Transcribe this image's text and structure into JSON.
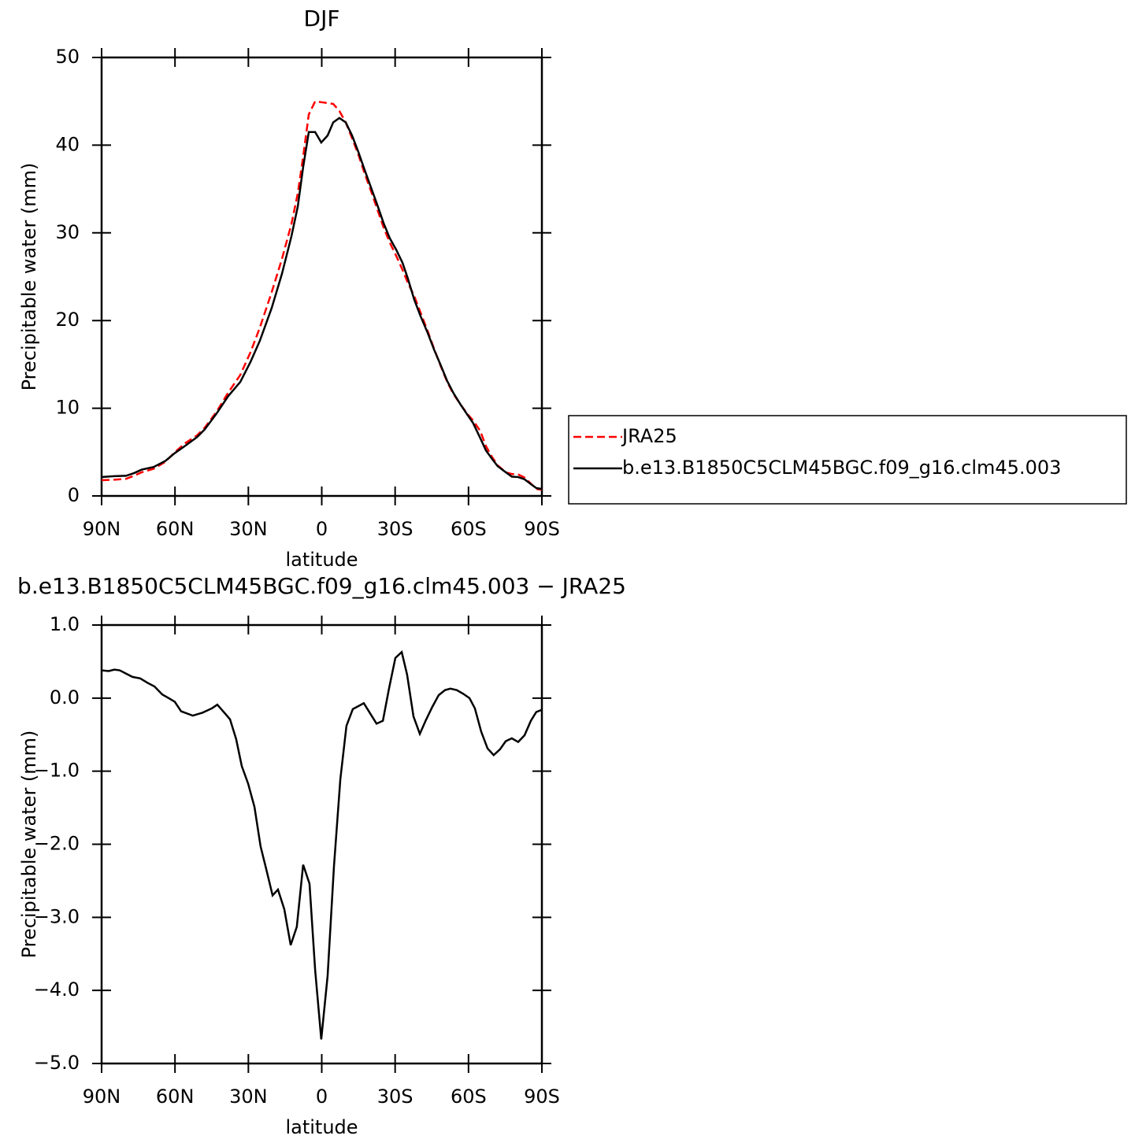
{
  "chart_data": [
    {
      "type": "line",
      "title": "DJF",
      "ylabel": "Precipitable water (mm)",
      "xlabel": "latitude",
      "x": [
        90,
        84.8,
        80,
        76.8,
        73.6,
        68.7,
        63.9,
        60,
        55.9,
        51,
        47.8,
        43,
        38.2,
        33.3,
        29.1,
        25.3,
        20.5,
        16.3,
        12.4,
        9.8,
        7.6,
        5.3,
        2.7,
        0.2,
        -2.4,
        -4.7,
        -7.2,
        -9.8,
        -12.4,
        -15,
        -17.5,
        -20.1,
        -22.7,
        -25.3,
        -27.8,
        -30.4,
        -33,
        -35.2,
        -37.8,
        -40.4,
        -43.3,
        -45.9,
        -48.8,
        -51.3,
        -53.9,
        -56.8,
        -59.7,
        -61.9,
        -64.8,
        -67.1,
        -69.7,
        -71.9,
        -75.2,
        -77.7,
        -80.3,
        -82.9,
        -85.5,
        -87.7,
        -90
      ],
      "series": [
        {
          "name": "JRA25",
          "color": "#ff0000",
          "linestyle": "dashed",
          "values": [
            1.8,
            1.85,
            1.95,
            2.3,
            2.7,
            3.1,
            3.9,
            5.0,
            6.0,
            6.9,
            7.8,
            9.6,
            11.8,
            13.8,
            16.4,
            19.2,
            23.2,
            27.0,
            31.0,
            34.5,
            38.7,
            43.5,
            45.0,
            44.9,
            44.8,
            44.7,
            43.9,
            42.6,
            40.8,
            38.9,
            36.8,
            34.8,
            32.7,
            30.6,
            28.9,
            27.4,
            25.8,
            24.3,
            22.8,
            20.9,
            18.8,
            16.8,
            14.7,
            13.0,
            11.6,
            10.4,
            9.3,
            8.6,
            7.4,
            5.7,
            4.4,
            3.5,
            2.7,
            2.5,
            2.45,
            2.1,
            1.4,
            0.8,
            0.7
          ]
        },
        {
          "name": "b.e13.B1850C5CLM45BGC.f09_g16.clm45.003",
          "color": "#000000",
          "linestyle": "solid",
          "values": [
            2.15,
            2.25,
            2.3,
            2.6,
            3.0,
            3.3,
            4.0,
            4.9,
            5.7,
            6.7,
            7.6,
            9.4,
            11.4,
            13.0,
            15.3,
            17.7,
            21.4,
            25.3,
            29.6,
            33.0,
            37.5,
            41.5,
            41.5,
            40.3,
            41.1,
            42.6,
            43.1,
            42.6,
            41.1,
            39.2,
            37.2,
            35.2,
            33.2,
            31.1,
            29.4,
            28.1,
            26.6,
            24.8,
            22.4,
            20.5,
            18.6,
            16.7,
            14.8,
            13.1,
            11.7,
            10.4,
            9.2,
            8.3,
            6.6,
            5.2,
            4.2,
            3.4,
            2.7,
            2.2,
            2.15,
            1.9,
            1.35,
            0.9,
            0.8
          ]
        }
      ],
      "xlim": [
        90,
        -90
      ],
      "xticks": [
        {
          "value": 90,
          "label": "90N"
        },
        {
          "value": 60,
          "label": "60N"
        },
        {
          "value": 30,
          "label": "30N"
        },
        0,
        {
          "value": -30,
          "label": "30S"
        },
        {
          "value": -60,
          "label": "60S"
        },
        {
          "value": -90,
          "label": "90S"
        }
      ],
      "ylim": [
        0,
        50
      ],
      "yticks": [
        0,
        10,
        20,
        30,
        40,
        50
      ],
      "legend": "right"
    },
    {
      "type": "line",
      "title": "b.e13.B1850C5CLM45BGC.f09_g16.clm45.003 − JRA25",
      "ylabel": "Precipitable water (mm)",
      "xlabel": "latitude",
      "x": [
        90,
        87.1,
        84.8,
        82.6,
        77.4,
        74.2,
        71.3,
        68.4,
        65.2,
        62.6,
        60.1,
        57.5,
        52.7,
        48.8,
        44.9,
        42.7,
        39.8,
        37.5,
        35.0,
        32.7,
        30.1,
        27.5,
        25.0,
        22.4,
        20.1,
        17.9,
        15.3,
        12.7,
        10.2,
        7.6,
        5.0,
        2.7,
        0.2,
        -2.4,
        -5.0,
        -7.6,
        -10.1,
        -12.7,
        -15.0,
        -17.2,
        -19.8,
        -22.4,
        -25.0,
        -27.5,
        -30.1,
        -32.7,
        -34.9,
        -37.5,
        -40.1,
        -42.6,
        -45.2,
        -47.8,
        -50.4,
        -52.6,
        -55.2,
        -57.8,
        -60.4,
        -62.6,
        -65.2,
        -67.8,
        -70.3,
        -72.9,
        -75.2,
        -77.7,
        -80.3,
        -82.9,
        -85.5,
        -87.7,
        -90
      ],
      "values": [
        0.38,
        0.37,
        0.39,
        0.38,
        0.29,
        0.27,
        0.21,
        0.16,
        0.05,
        0.0,
        -0.05,
        -0.18,
        -0.24,
        -0.2,
        -0.14,
        -0.09,
        -0.2,
        -0.29,
        -0.56,
        -0.93,
        -1.17,
        -1.49,
        -2.03,
        -2.38,
        -2.7,
        -2.62,
        -2.89,
        -3.38,
        -3.13,
        -2.28,
        -2.54,
        -3.72,
        -4.67,
        -3.8,
        -2.3,
        -1.11,
        -0.38,
        -0.15,
        -0.11,
        -0.07,
        -0.21,
        -0.35,
        -0.31,
        0.13,
        0.55,
        0.63,
        0.32,
        -0.25,
        -0.49,
        -0.3,
        -0.12,
        0.04,
        0.11,
        0.13,
        0.11,
        0.06,
        0.0,
        -0.14,
        -0.46,
        -0.69,
        -0.78,
        -0.7,
        -0.59,
        -0.55,
        -0.6,
        -0.51,
        -0.31,
        -0.19,
        -0.16
      ],
      "color": "#000000",
      "xlim": [
        90,
        -90
      ],
      "xticks": [
        {
          "value": 90,
          "label": "90N"
        },
        {
          "value": 60,
          "label": "60N"
        },
        {
          "value": 30,
          "label": "30N"
        },
        0,
        {
          "value": -30,
          "label": "30S"
        },
        {
          "value": -60,
          "label": "60S"
        },
        {
          "value": -90,
          "label": "90S"
        }
      ],
      "ylim": [
        -5,
        1
      ],
      "yticks": [
        {
          "value": -5,
          "label": "−5.0"
        },
        {
          "value": -4,
          "label": "−4.0"
        },
        {
          "value": -3,
          "label": "−3.0"
        },
        {
          "value": -2,
          "label": "−2.0"
        },
        {
          "value": -1,
          "label": "−1.0"
        },
        {
          "value": 0,
          "label": "0.0"
        },
        {
          "value": 1,
          "label": "1.0"
        }
      ]
    }
  ]
}
